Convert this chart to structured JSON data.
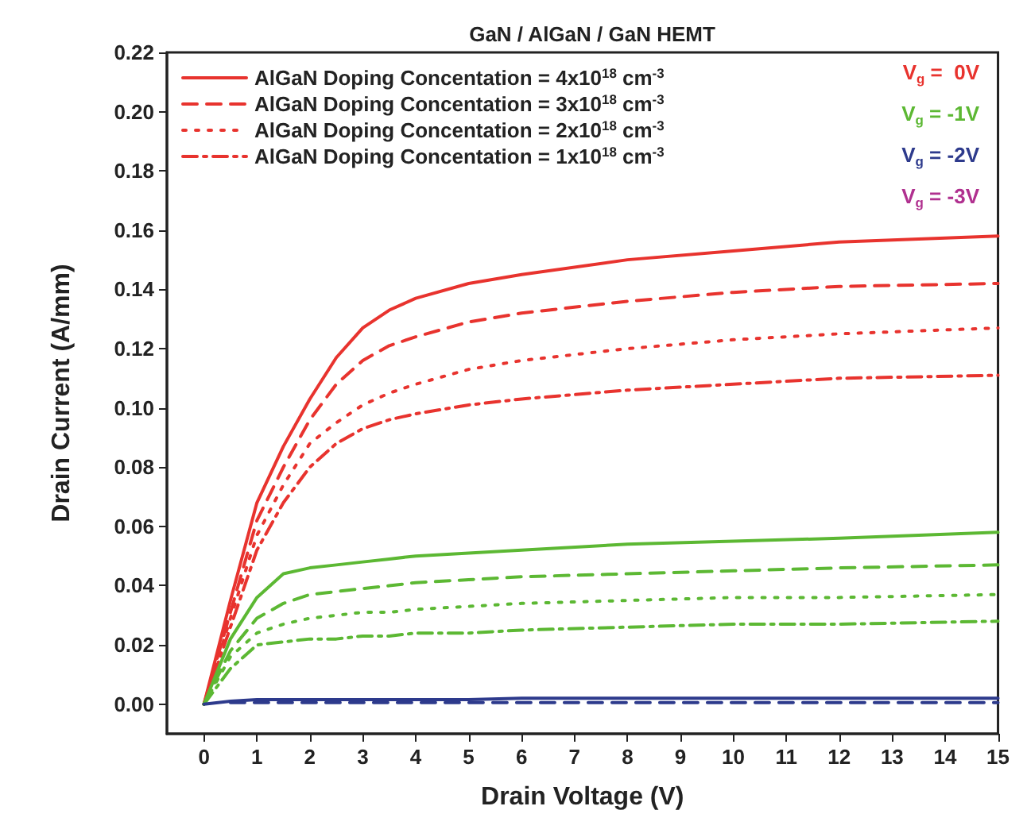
{
  "chart_data": {
    "type": "line",
    "title": "GaN / AlGaN / GaN HEMT",
    "xlabel": "Drain Voltage (V)",
    "ylabel": "Drain Current (A/mm)",
    "x": [
      0,
      0.5,
      1,
      1.5,
      2,
      2.5,
      3,
      3.5,
      4,
      5,
      6,
      8,
      10,
      12,
      15
    ],
    "series": [
      {
        "name": "AlGaN Doping Concentation = 4x10$^{18}$ cm$^{-3}$",
        "color": "#e8332e",
        "line_style": "solid",
        "values": [
          0,
          0.035,
          0.068,
          0.087,
          0.103,
          0.117,
          0.127,
          0.133,
          0.137,
          0.142,
          0.145,
          0.15,
          0.153,
          0.156,
          0.158
        ]
      },
      {
        "name": "AlGaN Doping Concentation = 3x10$^{18}$ cm$^{-3}$",
        "color": "#e8332e",
        "line_style": "dashed",
        "values": [
          0,
          0.031,
          0.062,
          0.08,
          0.096,
          0.108,
          0.116,
          0.121,
          0.124,
          0.129,
          0.132,
          0.136,
          0.139,
          0.141,
          0.142
        ]
      },
      {
        "name": "AlGaN Doping Concentation = 2x10$^{18}$ cm$^{-3}$",
        "color": "#e8332e",
        "line_style": "dotted",
        "values": [
          0,
          0.029,
          0.057,
          0.074,
          0.088,
          0.095,
          0.101,
          0.105,
          0.108,
          0.113,
          0.116,
          0.12,
          0.123,
          0.125,
          0.127
        ]
      },
      {
        "name": "AlGaN Doping Concentation = 1x10$^{18}$ cm$^{-3}$",
        "color": "#e8332e",
        "line_style": "dashdot",
        "values": [
          0,
          0.026,
          0.052,
          0.068,
          0.08,
          0.088,
          0.093,
          0.096,
          0.098,
          0.101,
          0.103,
          0.106,
          0.108,
          0.11,
          0.111
        ]
      },
      {
        "color": "#5cb833",
        "line_style": "solid",
        "values": [
          0,
          0.022,
          0.036,
          0.044,
          0.046,
          0.047,
          0.048,
          0.049,
          0.05,
          0.051,
          0.052,
          0.054,
          0.055,
          0.056,
          0.058
        ]
      },
      {
        "color": "#5cb833",
        "line_style": "dashed",
        "values": [
          0,
          0.018,
          0.029,
          0.034,
          0.037,
          0.038,
          0.039,
          0.04,
          0.041,
          0.042,
          0.043,
          0.044,
          0.045,
          0.046,
          0.047
        ]
      },
      {
        "color": "#5cb833",
        "line_style": "dotted",
        "values": [
          0,
          0.016,
          0.024,
          0.027,
          0.029,
          0.03,
          0.031,
          0.031,
          0.032,
          0.033,
          0.034,
          0.035,
          0.036,
          0.036,
          0.037
        ]
      },
      {
        "color": "#5cb833",
        "line_style": "dashdot",
        "values": [
          0,
          0.012,
          0.02,
          0.021,
          0.022,
          0.022,
          0.023,
          0.023,
          0.024,
          0.024,
          0.025,
          0.026,
          0.027,
          0.027,
          0.028
        ]
      },
      {
        "color": "#2d3a8c",
        "line_style": "solid",
        "values": [
          0,
          0.001,
          0.0015,
          0.0015,
          0.0015,
          0.0015,
          0.0015,
          0.0015,
          0.0015,
          0.0015,
          0.002,
          0.002,
          0.002,
          0.002,
          0.002
        ]
      },
      {
        "color": "#2d3a8c",
        "line_style": "dashed",
        "values": [
          null,
          0.0005,
          0.0005,
          0.0005,
          0.0005,
          0.0005,
          0.0005,
          0.0005,
          0.0005,
          0.0005,
          0.0005,
          0.0005,
          0.0005,
          0.0005,
          0.0005
        ]
      },
      {
        "color": "#b0308f",
        "line_style": "solid",
        "values": [
          null,
          null,
          null,
          null,
          null,
          null,
          null,
          null,
          null,
          null,
          null,
          null,
          null,
          null,
          null
        ]
      }
    ],
    "annotations": [
      "V$_{g}$ =  0V",
      "V$_{g}$ = -1V",
      "V$_{g}$ = -2V",
      "V$_{g}$ = -3V"
    ],
    "xlim": [
      -0.7,
      15
    ],
    "xticks": [
      0,
      1,
      2,
      3,
      4,
      5,
      6,
      7,
      8,
      9,
      10,
      11,
      12,
      13,
      14,
      15
    ],
    "ylim": [
      -0.01,
      0.22
    ],
    "yticks": [
      {
        "value": 0,
        "label": "0.00"
      },
      {
        "value": 0.02,
        "label": "0.02"
      },
      {
        "value": 0.04,
        "label": "0.04"
      },
      {
        "value": 0.06,
        "label": "0.06"
      },
      {
        "value": 0.08,
        "label": "0.08"
      },
      {
        "value": 0.1,
        "label": "0.10"
      },
      {
        "value": 0.12,
        "label": "0.12"
      },
      {
        "value": 0.14,
        "label": "0.14"
      },
      {
        "value": 0.16,
        "label": "0.16"
      },
      {
        "value": 0.18,
        "label": "0.18"
      },
      {
        "value": 0.2,
        "label": "0.20"
      },
      {
        "value": 0.22,
        "label": "0.22"
      }
    ],
    "grid": false,
    "legend": "top left",
    "marker": "none"
  }
}
